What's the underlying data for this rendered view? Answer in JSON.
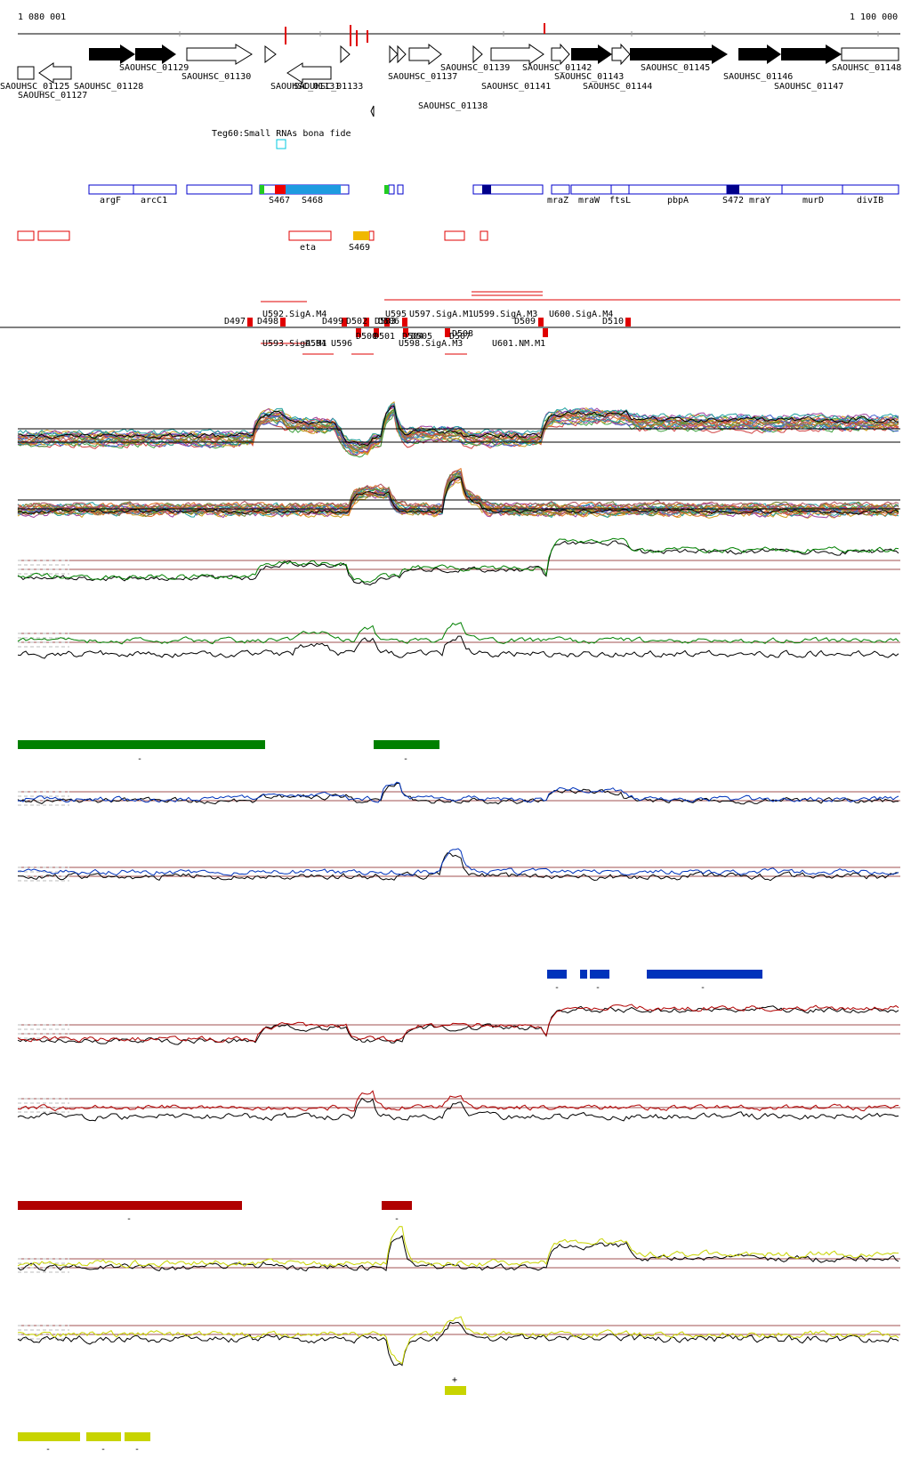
{
  "ruler": {
    "start_label": "1 080 001",
    "end_label": "1 100 000"
  },
  "genes": {
    "labels": [
      "SAOUHSC_01125",
      "SAOUHSC_01127",
      "SAOUHSC_01128",
      "SAOUHSC_01129",
      "SAOUHSC_01130",
      "SAOUHSC_01131",
      "SAOUHSC_01133",
      "SAOUHSC_01137",
      "SAOUHSC_01138",
      "SAOUHSC_01139",
      "SAOUHSC_01141",
      "SAOUHSC_01142",
      "SAOUHSC_01143",
      "SAOUHSC_01144",
      "SAOUHSC_01145",
      "SAOUHSC_01146",
      "SAOUHSC_01147",
      "SAOUHSC_01148"
    ]
  },
  "srna_track": {
    "title": "Teg60:Small RNAs bona fide"
  },
  "annotation_track": {
    "labels": [
      "argF",
      "arcC1",
      "S467",
      "S468",
      "mraZ",
      "mraW",
      "ftsL",
      "pbpA",
      "S472",
      "mraY",
      "murD",
      "divIB"
    ]
  },
  "red_track": {
    "labels": [
      "eta",
      "S469"
    ]
  },
  "transcription_units": {
    "labels": [
      "U592.SigA.M4",
      "D497",
      "D498",
      "D499",
      "D502",
      "D503",
      "D506",
      "U595",
      "U597.SigA.M1",
      "U599.SigA.M3",
      "D509",
      "U600.SigA.M4",
      "D510",
      "U593.SigA.M1",
      "U594",
      "U596",
      "D500",
      "D501",
      "D504",
      "D505",
      "U598.SigA.M3",
      "D507",
      "D508",
      "U601.NM.M1"
    ]
  },
  "condition_markers": {
    "green": [
      "-",
      "-"
    ],
    "blue": [
      "-",
      "-",
      "-"
    ],
    "red": [
      "-",
      "-"
    ],
    "yellow_plus": [
      "+"
    ],
    "yellow_minus": [
      "-",
      "-",
      "-"
    ]
  },
  "colors": {
    "gene_filled": "#000000",
    "annotation_outline": "#0000cc",
    "annotation_fill": "#1e9be0",
    "annotation_dark": "#00008b",
    "srna_red": "#e00000",
    "tu_red": "#e00000",
    "green": "#008000",
    "blue": "#0033bb",
    "red_dark": "#b00000",
    "yellow": "#c8d400",
    "guide_line": "#a05050"
  }
}
